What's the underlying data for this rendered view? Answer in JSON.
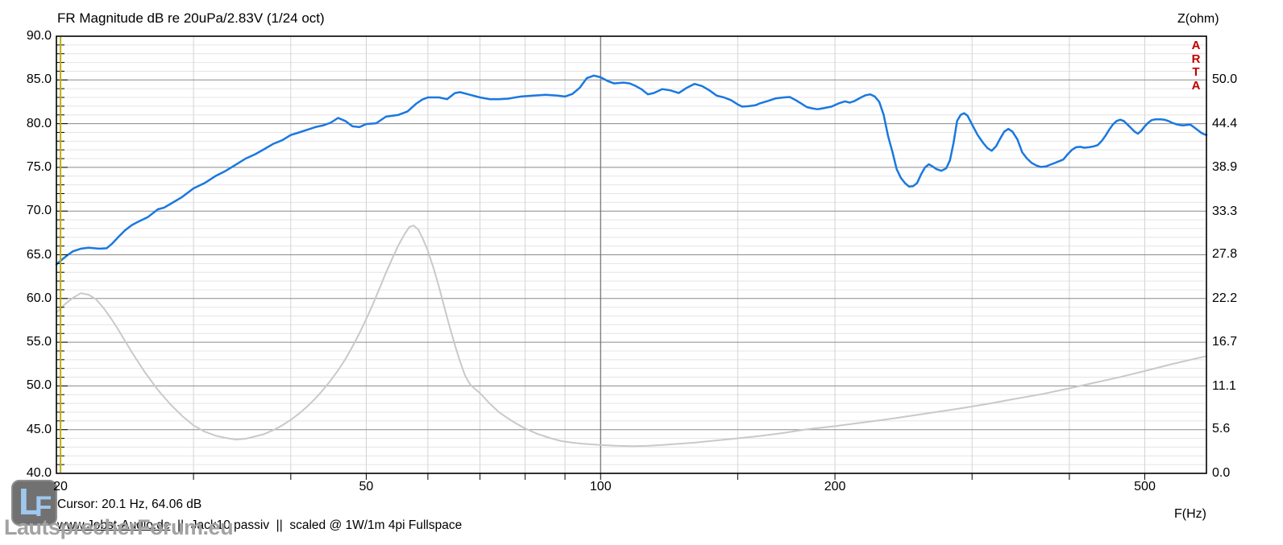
{
  "header": {
    "title": "FR Magnitude dB re 20uPa/2.83V (1/24 oct)",
    "right_axis_title": "Z(ohm)"
  },
  "branding": {
    "vertical_label": "A\nR\nT\nA"
  },
  "watermark": {
    "logo_l": "L",
    "logo_f": "F",
    "site_name": "LautsprecherForum.eu"
  },
  "footer": {
    "cursor_readout": "Cursor: 20.1 Hz, 64.06 dB",
    "source_link": "www.Jobst-Audio.de",
    "annotation": "  ||  Jack10 passiv  ||  scaled @ 1W/1m 4pi Fullspace",
    "x_axis_title": "F(Hz)"
  },
  "colors": {
    "fr_curve": "#1a78e0",
    "impedance_curve": "#c9c9c9",
    "grid_major_h": "#8a8a8a",
    "grid_minor_h": "#e4e4e4",
    "grid_minor_v": "#d4d4d4",
    "grid_100hz_v": "#6b6b6b",
    "border": "#000000",
    "cursor_line": "#c2ae00",
    "arta_red": "#c00000"
  },
  "chart_data": {
    "type": "line",
    "title": "FR Magnitude dB re 20uPa/2.83V (1/24 oct)",
    "x_axis": {
      "label": "F(Hz)",
      "scale": "log",
      "min": 20,
      "max": 600,
      "tick_labels": [
        "20",
        "50",
        "100",
        "200",
        "500"
      ],
      "tick_values": [
        20,
        50,
        100,
        200,
        500
      ],
      "gridlines": [
        30,
        40,
        50,
        60,
        70,
        80,
        90,
        100,
        150,
        200,
        300,
        400,
        500
      ]
    },
    "y_left_axis": {
      "label": "dB re 20uPa/2.83V",
      "min": 40,
      "max": 90,
      "major_step": 5,
      "minor_step": 1,
      "tick_labels": [
        "90.0",
        "85.0",
        "80.0",
        "75.0",
        "70.0",
        "65.0",
        "60.0",
        "55.0",
        "50.0",
        "45.0",
        "40.0"
      ],
      "tick_values": [
        90,
        85,
        80,
        75,
        70,
        65,
        60,
        55,
        50,
        45,
        40
      ]
    },
    "y_right_axis": {
      "label": "Z(ohm)",
      "min": 0,
      "max": 50,
      "tick_labels": [
        "50.0",
        "44.4",
        "38.9",
        "33.3",
        "27.8",
        "22.2",
        "16.7",
        "11.1",
        "5.6",
        "0.0"
      ],
      "tick_values": [
        50,
        44.4,
        38.9,
        33.3,
        27.8,
        22.2,
        16.7,
        11.1,
        5.6,
        0
      ]
    },
    "cursor": {
      "freq_hz": 20.1,
      "value_db": 64.06
    },
    "grid": true,
    "legend_position": "none",
    "series": [
      {
        "name": "FR Magnitude (1/24 oct)",
        "axis": "left",
        "color": "#1a78e0",
        "points": [
          [
            20,
            63.9
          ],
          [
            20.3,
            64.4
          ],
          [
            20.7,
            65.0
          ],
          [
            21,
            65.4
          ],
          [
            21.5,
            65.7
          ],
          [
            22,
            65.8
          ],
          [
            22.7,
            65.7
          ],
          [
            23.2,
            65.75
          ],
          [
            23.6,
            66.3
          ],
          [
            24,
            67.0
          ],
          [
            24.5,
            67.8
          ],
          [
            25,
            68.4
          ],
          [
            25.5,
            68.8
          ],
          [
            26.2,
            69.3
          ],
          [
            27,
            70.2
          ],
          [
            27.5,
            70.4
          ],
          [
            28,
            70.8
          ],
          [
            29,
            71.6
          ],
          [
            30,
            72.6
          ],
          [
            31,
            73.2
          ],
          [
            32,
            74.0
          ],
          [
            33,
            74.6
          ],
          [
            34,
            75.3
          ],
          [
            35,
            76.0
          ],
          [
            36,
            76.5
          ],
          [
            37,
            77.1
          ],
          [
            38,
            77.7
          ],
          [
            39,
            78.1
          ],
          [
            40,
            78.7
          ],
          [
            41,
            79.0
          ],
          [
            42,
            79.3
          ],
          [
            43,
            79.6
          ],
          [
            44,
            79.8
          ],
          [
            45,
            80.1
          ],
          [
            46,
            80.65
          ],
          [
            47,
            80.3
          ],
          [
            48,
            79.7
          ],
          [
            49,
            79.6
          ],
          [
            50,
            79.95
          ],
          [
            51.5,
            80.05
          ],
          [
            53,
            80.8
          ],
          [
            55,
            81.0
          ],
          [
            56.5,
            81.4
          ],
          [
            58,
            82.3
          ],
          [
            59,
            82.75
          ],
          [
            60,
            83.0
          ],
          [
            62,
            83.0
          ],
          [
            63.5,
            82.8
          ],
          [
            65,
            83.5
          ],
          [
            66,
            83.6
          ],
          [
            68,
            83.3
          ],
          [
            70,
            83.0
          ],
          [
            72,
            82.8
          ],
          [
            74,
            82.8
          ],
          [
            76,
            82.85
          ],
          [
            79,
            83.1
          ],
          [
            82,
            83.2
          ],
          [
            85,
            83.3
          ],
          [
            88,
            83.2
          ],
          [
            90,
            83.1
          ],
          [
            92,
            83.4
          ],
          [
            94,
            84.1
          ],
          [
            96,
            85.2
          ],
          [
            98,
            85.5
          ],
          [
            100,
            85.3
          ],
          [
            102,
            84.9
          ],
          [
            104,
            84.6
          ],
          [
            107,
            84.7
          ],
          [
            109,
            84.6
          ],
          [
            111,
            84.3
          ],
          [
            113,
            83.9
          ],
          [
            115,
            83.35
          ],
          [
            117,
            83.5
          ],
          [
            120,
            83.95
          ],
          [
            123,
            83.8
          ],
          [
            126,
            83.5
          ],
          [
            129,
            84.1
          ],
          [
            132,
            84.55
          ],
          [
            135,
            84.3
          ],
          [
            138,
            83.8
          ],
          [
            141,
            83.2
          ],
          [
            144,
            83.0
          ],
          [
            147,
            82.7
          ],
          [
            150,
            82.2
          ],
          [
            152,
            81.95
          ],
          [
            155,
            82.0
          ],
          [
            158,
            82.1
          ],
          [
            160,
            82.3
          ],
          [
            164,
            82.6
          ],
          [
            168,
            82.9
          ],
          [
            172,
            83.0
          ],
          [
            175,
            83.05
          ],
          [
            178,
            82.7
          ],
          [
            181,
            82.3
          ],
          [
            184,
            81.9
          ],
          [
            187,
            81.75
          ],
          [
            190,
            81.65
          ],
          [
            194,
            81.8
          ],
          [
            198,
            81.95
          ],
          [
            202,
            82.3
          ],
          [
            206,
            82.55
          ],
          [
            209,
            82.4
          ],
          [
            212,
            82.6
          ],
          [
            216,
            83.0
          ],
          [
            219,
            83.25
          ],
          [
            222,
            83.35
          ],
          [
            225,
            83.1
          ],
          [
            228,
            82.5
          ],
          [
            231,
            81.0
          ],
          [
            234,
            78.6
          ],
          [
            237,
            76.8
          ],
          [
            240,
            74.8
          ],
          [
            243,
            73.8
          ],
          [
            246,
            73.2
          ],
          [
            249,
            72.8
          ],
          [
            252,
            72.85
          ],
          [
            255,
            73.2
          ],
          [
            258,
            74.2
          ],
          [
            261,
            75.0
          ],
          [
            264,
            75.35
          ],
          [
            267,
            75.1
          ],
          [
            270,
            74.8
          ],
          [
            274,
            74.6
          ],
          [
            278,
            74.9
          ],
          [
            281,
            75.8
          ],
          [
            284,
            77.8
          ],
          [
            287,
            80.3
          ],
          [
            290,
            81.0
          ],
          [
            293,
            81.2
          ],
          [
            296,
            80.9
          ],
          [
            300,
            79.9
          ],
          [
            305,
            78.7
          ],
          [
            310,
            77.8
          ],
          [
            314,
            77.2
          ],
          [
            318,
            76.9
          ],
          [
            322,
            77.4
          ],
          [
            326,
            78.3
          ],
          [
            330,
            79.1
          ],
          [
            334,
            79.4
          ],
          [
            338,
            79.1
          ],
          [
            343,
            78.2
          ],
          [
            348,
            76.7
          ],
          [
            353,
            76.0
          ],
          [
            358,
            75.5
          ],
          [
            363,
            75.2
          ],
          [
            368,
            75.05
          ],
          [
            373,
            75.1
          ],
          [
            378,
            75.3
          ],
          [
            383,
            75.5
          ],
          [
            388,
            75.7
          ],
          [
            393,
            75.9
          ],
          [
            398,
            76.5
          ],
          [
            403,
            77.0
          ],
          [
            408,
            77.3
          ],
          [
            413,
            77.35
          ],
          [
            418,
            77.25
          ],
          [
            424,
            77.3
          ],
          [
            430,
            77.4
          ],
          [
            435,
            77.55
          ],
          [
            440,
            78.0
          ],
          [
            445,
            78.6
          ],
          [
            450,
            79.3
          ],
          [
            455,
            79.9
          ],
          [
            460,
            80.3
          ],
          [
            465,
            80.45
          ],
          [
            470,
            80.3
          ],
          [
            475,
            79.9
          ],
          [
            480,
            79.5
          ],
          [
            485,
            79.1
          ],
          [
            490,
            78.85
          ],
          [
            495,
            79.2
          ],
          [
            500,
            79.7
          ],
          [
            505,
            80.1
          ],
          [
            510,
            80.4
          ],
          [
            516,
            80.5
          ],
          [
            524,
            80.5
          ],
          [
            530,
            80.45
          ],
          [
            536,
            80.3
          ],
          [
            542,
            80.1
          ],
          [
            548,
            79.95
          ],
          [
            554,
            79.85
          ],
          [
            560,
            79.8
          ],
          [
            566,
            79.85
          ],
          [
            572,
            79.9
          ],
          [
            578,
            79.6
          ],
          [
            584,
            79.3
          ],
          [
            590,
            79.0
          ],
          [
            595,
            78.8
          ],
          [
            600,
            78.7
          ]
        ]
      },
      {
        "name": "Impedance Z(ohm)",
        "axis": "right",
        "color": "#c9c9c9",
        "points": [
          [
            20,
            20.4
          ],
          [
            20.5,
            21.5
          ],
          [
            21,
            22.3
          ],
          [
            21.5,
            22.9
          ],
          [
            22,
            22.7
          ],
          [
            22.5,
            22.1
          ],
          [
            23,
            21.0
          ],
          [
            23.5,
            19.7
          ],
          [
            24,
            18.3
          ],
          [
            25,
            15.4
          ],
          [
            26,
            12.8
          ],
          [
            27,
            10.6
          ],
          [
            28,
            8.8
          ],
          [
            29,
            7.3
          ],
          [
            30,
            6.1
          ],
          [
            31,
            5.3
          ],
          [
            32,
            4.8
          ],
          [
            33,
            4.5
          ],
          [
            34,
            4.3
          ],
          [
            35,
            4.4
          ],
          [
            36,
            4.7
          ],
          [
            37,
            5.0
          ],
          [
            38,
            5.5
          ],
          [
            39,
            6.1
          ],
          [
            40,
            6.8
          ],
          [
            41,
            7.6
          ],
          [
            42,
            8.5
          ],
          [
            43,
            9.5
          ],
          [
            44,
            10.6
          ],
          [
            45,
            11.8
          ],
          [
            46,
            13.1
          ],
          [
            47,
            14.5
          ],
          [
            48,
            16.1
          ],
          [
            49,
            17.8
          ],
          [
            50,
            19.6
          ],
          [
            51,
            21.5
          ],
          [
            52,
            23.5
          ],
          [
            53,
            25.5
          ],
          [
            54,
            27.3
          ],
          [
            55,
            29.0
          ],
          [
            56,
            30.4
          ],
          [
            56.8,
            31.3
          ],
          [
            57.5,
            31.5
          ],
          [
            58.3,
            31.0
          ],
          [
            59,
            30.0
          ],
          [
            60,
            28.3
          ],
          [
            61,
            26.1
          ],
          [
            62,
            23.7
          ],
          [
            63,
            21.1
          ],
          [
            64,
            18.6
          ],
          [
            65,
            16.3
          ],
          [
            66,
            14.2
          ],
          [
            67,
            12.4
          ],
          [
            68,
            11.3
          ],
          [
            69,
            10.7
          ],
          [
            70,
            10.2
          ],
          [
            72,
            8.9
          ],
          [
            74,
            7.8
          ],
          [
            76,
            7.0
          ],
          [
            78,
            6.3
          ],
          [
            80,
            5.7
          ],
          [
            83,
            5.0
          ],
          [
            86,
            4.5
          ],
          [
            89,
            4.1
          ],
          [
            92,
            3.9
          ],
          [
            95,
            3.75
          ],
          [
            100,
            3.6
          ],
          [
            105,
            3.5
          ],
          [
            110,
            3.45
          ],
          [
            115,
            3.5
          ],
          [
            120,
            3.6
          ],
          [
            126,
            3.75
          ],
          [
            132,
            3.9
          ],
          [
            140,
            4.15
          ],
          [
            150,
            4.45
          ],
          [
            160,
            4.75
          ],
          [
            172,
            5.15
          ],
          [
            184,
            5.6
          ],
          [
            200,
            6.0
          ],
          [
            215,
            6.4
          ],
          [
            233,
            6.85
          ],
          [
            250,
            7.3
          ],
          [
            270,
            7.8
          ],
          [
            294,
            8.35
          ],
          [
            315,
            8.85
          ],
          [
            340,
            9.45
          ],
          [
            370,
            10.1
          ],
          [
            400,
            10.8
          ],
          [
            430,
            11.5
          ],
          [
            465,
            12.25
          ],
          [
            500,
            13.0
          ],
          [
            540,
            13.85
          ],
          [
            570,
            14.4
          ],
          [
            600,
            14.9
          ]
        ]
      }
    ]
  }
}
